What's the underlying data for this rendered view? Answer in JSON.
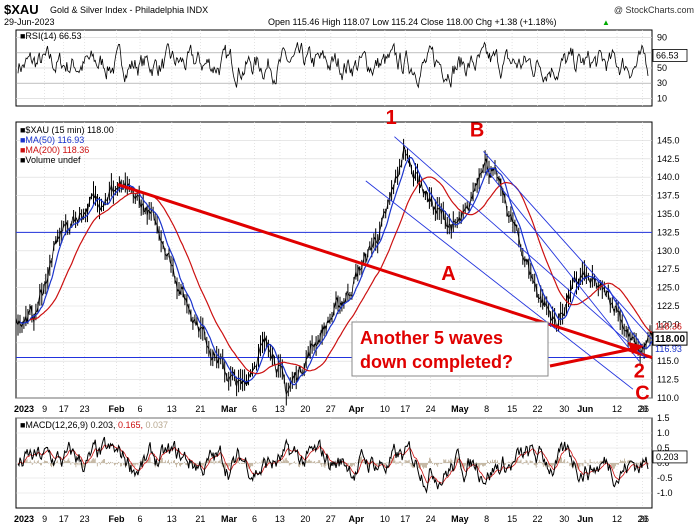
{
  "header": {
    "title": "$XAU",
    "name": "Gold & Silver Index - Philadelphia",
    "exchange": "INDX",
    "date": "29-Jun-2023",
    "watermark": "@ StockCharts.com",
    "ohlc_text": "Open 115.46  High 118.07  Low 115.24  Close 118.00  Chg +1.38 (+1.18%)",
    "chg_arrow": "▲"
  },
  "chart_data": [
    {
      "type": "line",
      "panel": "rsi",
      "series": [
        {
          "name": "RSI(14)",
          "last": 66.53
        }
      ],
      "legend": "RSI(14) 66.53",
      "ylim": [
        0,
        100
      ],
      "yticks": [
        10,
        30,
        50,
        70,
        90
      ],
      "guides": [
        30,
        70
      ],
      "last_label": "66.53"
    },
    {
      "type": "line",
      "panel": "price",
      "ylim": [
        110,
        147.5
      ],
      "yticks": [
        110.0,
        112.5,
        115.0,
        117.5,
        120.0,
        122.5,
        125.0,
        127.5,
        130.0,
        132.5,
        135.0,
        137.5,
        140.0,
        142.5,
        145.0
      ],
      "ytick_labels": [
        "110.0",
        "112.5",
        "115.0",
        "117.5",
        "120.0",
        "122.5",
        "125.0",
        "127.5",
        "130.0",
        "132.5",
        "135.0",
        "137.5",
        "140.0",
        "142.5",
        "145.0"
      ],
      "legend": [
        {
          "label": "$XAU (15 min) 118.00",
          "color": "#000000"
        },
        {
          "label": "MA(50) 116.93",
          "color": "#1a33cc"
        },
        {
          "label": "MA(200) 118.36",
          "color": "#cc1111"
        },
        {
          "label": "Volume undef",
          "color": "#000000"
        }
      ],
      "last_price_label": "118.00",
      "ma50_label": "116.93",
      "ma200_label": "118.36",
      "price_keypoints": [
        {
          "t": 0.0,
          "v": 120.4
        },
        {
          "t": 0.03,
          "v": 121.3
        },
        {
          "t": 0.07,
          "v": 132.5
        },
        {
          "t": 0.12,
          "v": 136.6
        },
        {
          "t": 0.16,
          "v": 138.6
        },
        {
          "t": 0.2,
          "v": 136.2
        },
        {
          "t": 0.23,
          "v": 132.0
        },
        {
          "t": 0.26,
          "v": 124.5
        },
        {
          "t": 0.3,
          "v": 118.0
        },
        {
          "t": 0.33,
          "v": 113.4
        },
        {
          "t": 0.355,
          "v": 111.3
        },
        {
          "t": 0.38,
          "v": 116.0
        },
        {
          "t": 0.4,
          "v": 117.6
        },
        {
          "t": 0.425,
          "v": 110.8
        },
        {
          "t": 0.45,
          "v": 114.5
        },
        {
          "t": 0.48,
          "v": 119.0
        },
        {
          "t": 0.52,
          "v": 124.0
        },
        {
          "t": 0.55,
          "v": 129.0
        },
        {
          "t": 0.58,
          "v": 134.0
        },
        {
          "t": 0.61,
          "v": 143.5
        },
        {
          "t": 0.635,
          "v": 139.5
        },
        {
          "t": 0.66,
          "v": 135.5
        },
        {
          "t": 0.69,
          "v": 133.0
        },
        {
          "t": 0.71,
          "v": 134.8
        },
        {
          "t": 0.735,
          "v": 142.9
        },
        {
          "t": 0.76,
          "v": 138.8
        },
        {
          "t": 0.79,
          "v": 131.5
        },
        {
          "t": 0.82,
          "v": 124.5
        },
        {
          "t": 0.85,
          "v": 120.0
        },
        {
          "t": 0.87,
          "v": 124.0
        },
        {
          "t": 0.89,
          "v": 126.5
        },
        {
          "t": 0.92,
          "v": 124.5
        },
        {
          "t": 0.945,
          "v": 122.5
        },
        {
          "t": 0.965,
          "v": 118.0
        },
        {
          "t": 0.98,
          "v": 116.2
        },
        {
          "t": 1.0,
          "v": 118.0
        }
      ],
      "horizontal_lines": [
        132.5,
        115.5
      ],
      "trendline": {
        "from": {
          "t": 0.16,
          "v": 139.0
        },
        "to": {
          "t": 1.0,
          "v": 115.5
        }
      },
      "annotations": [
        {
          "text": "1",
          "t": 0.59,
          "v": 147.2
        },
        {
          "text": "B",
          "t": 0.725,
          "v": 145.5
        },
        {
          "text": "A",
          "t": 0.68,
          "v": 126.0
        },
        {
          "text": "2",
          "t": 0.98,
          "v": 112.8
        },
        {
          "text": "C",
          "t": 0.985,
          "v": 109.8
        }
      ],
      "callout": {
        "line1": "Another 5 waves",
        "line2": "down completed?"
      }
    },
    {
      "type": "line",
      "panel": "macd",
      "legend_prefix": "MACD(12,26,9)",
      "macd": 0.203,
      "signal": 0.165,
      "hist": 0.037,
      "ylim": [
        -1.5,
        1.5
      ],
      "yticks": [
        -1.0,
        -0.5,
        0.0,
        0.5,
        1.0,
        1.5
      ],
      "ytick_labels": [
        "-1.0",
        "-0.5",
        "0.0",
        "0.5",
        "1.0",
        "1.5"
      ],
      "last_label": "0.203"
    }
  ],
  "xaxis": {
    "labels": [
      {
        "text": "2023",
        "t": 0.0,
        "bold": true
      },
      {
        "text": "9",
        "t": 0.045
      },
      {
        "text": "17",
        "t": 0.075
      },
      {
        "text": "23",
        "t": 0.108
      },
      {
        "text": "Feb",
        "t": 0.158,
        "bold": true
      },
      {
        "text": "6",
        "t": 0.195
      },
      {
        "text": "13",
        "t": 0.245
      },
      {
        "text": "21",
        "t": 0.29
      },
      {
        "text": "Mar",
        "t": 0.335,
        "bold": true
      },
      {
        "text": "6",
        "t": 0.375
      },
      {
        "text": "13",
        "t": 0.415
      },
      {
        "text": "20",
        "t": 0.455
      },
      {
        "text": "27",
        "t": 0.495
      },
      {
        "text": "Apr",
        "t": 0.535,
        "bold": true
      },
      {
        "text": "10",
        "t": 0.58
      },
      {
        "text": "17",
        "t": 0.612
      },
      {
        "text": "24",
        "t": 0.652
      },
      {
        "text": "May",
        "t": 0.698,
        "bold": true
      },
      {
        "text": "8",
        "t": 0.74
      },
      {
        "text": "15",
        "t": 0.78
      },
      {
        "text": "22",
        "t": 0.82
      },
      {
        "text": "30",
        "t": 0.862
      },
      {
        "text": "Jun",
        "t": 0.895,
        "bold": true
      },
      {
        "text": "12",
        "t": 0.945
      },
      {
        "text": "20",
        "t": 0.985
      },
      {
        "text": "26",
        "t": 1.02
      }
    ]
  },
  "colors": {
    "price": "#000000",
    "ma50": "#1a33cc",
    "ma200": "#cc1111",
    "annotation": "#e00000",
    "channel": "#2233dd",
    "grid": "#d9d9d9"
  }
}
